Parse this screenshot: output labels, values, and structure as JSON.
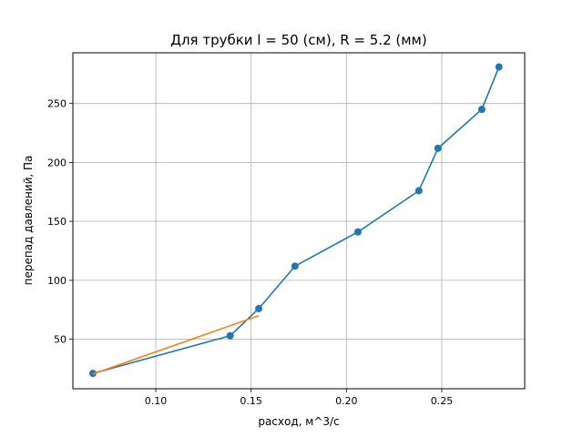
{
  "chart_data": {
    "type": "line",
    "title": "Для трубки l = 50 (см), R = 5.2 (мм)",
    "xlabel": "расход, м^3/с",
    "ylabel": "перепад давлений, Па",
    "xlim": [
      0.0565,
      0.2935
    ],
    "ylim": [
      8,
      293
    ],
    "grid": true,
    "xticks": [
      {
        "value": 0.1,
        "label": "0.10"
      },
      {
        "value": 0.15,
        "label": "0.15"
      },
      {
        "value": 0.2,
        "label": "0.20"
      },
      {
        "value": 0.25,
        "label": "0.25"
      }
    ],
    "yticks": [
      {
        "value": 50,
        "label": "50"
      },
      {
        "value": 100,
        "label": "100"
      },
      {
        "value": 150,
        "label": "150"
      },
      {
        "value": 200,
        "label": "200"
      },
      {
        "value": 250,
        "label": "250"
      }
    ],
    "series": [
      {
        "color": "#1f77b4",
        "markers": true,
        "x": [
          0.067,
          0.139,
          0.154,
          0.173,
          0.206,
          0.238,
          0.248,
          0.271,
          0.28
        ],
        "y": [
          21,
          53,
          76,
          112,
          141,
          176,
          212,
          245,
          281
        ]
      },
      {
        "color": "#ff7f0e",
        "markers": false,
        "x": [
          0.067,
          0.154
        ],
        "y": [
          20.5,
          70
        ]
      }
    ]
  }
}
